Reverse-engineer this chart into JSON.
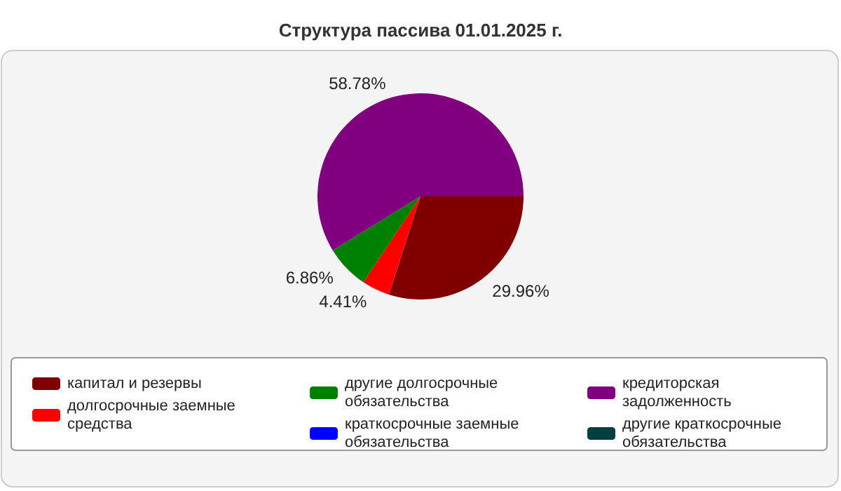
{
  "chart_data": {
    "type": "pie",
    "title": "Структура пассива 01.01.2025 г.",
    "categories": [
      "капитал и резервы",
      "долгосрочные заемные средства",
      "другие долгосрочные обязательства",
      "краткосрочные заемные обязательства",
      "кредиторская задолженность",
      "другие краткосрочные обязательства"
    ],
    "values": [
      29.96,
      4.41,
      6.86,
      0,
      58.78,
      0
    ],
    "colors": [
      "#800000",
      "#ff0000",
      "#008000",
      "#0000ff",
      "#800080",
      "#004040"
    ],
    "value_labels": [
      "29.96%",
      "4.41%",
      "6.86%",
      null,
      "58.78%",
      null
    ],
    "legend": "bottom"
  }
}
